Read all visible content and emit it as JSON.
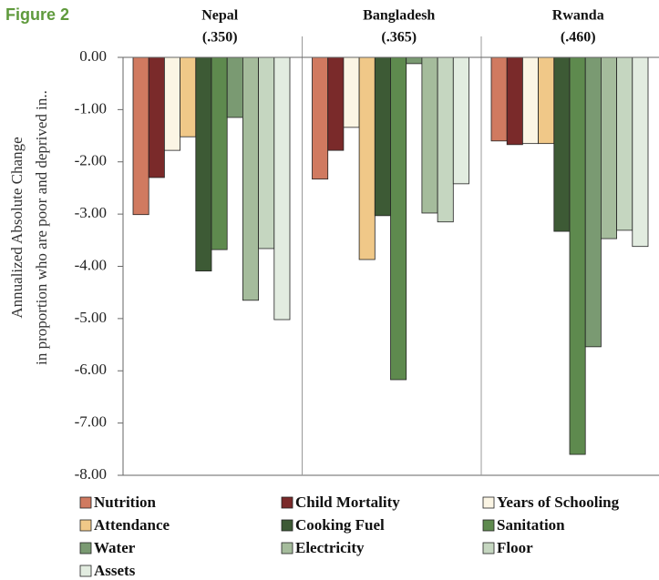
{
  "figure_label": "Figure 2",
  "chart_data": {
    "type": "bar",
    "ylabel": [
      "Annualized Absolute Change",
      "in proportion who are poor and deprived in.."
    ],
    "categories": [
      "Nepal",
      "Bangladesh",
      "Rwanda"
    ],
    "category_subtitles": [
      "(.350)",
      "(.365)",
      "(.460)"
    ],
    "ylim": [
      -8,
      0
    ],
    "yticks": [
      {
        "value": 0,
        "label": "0.00"
      },
      {
        "value": -1,
        "label": "-1.00"
      },
      {
        "value": -2,
        "label": "-2.00"
      },
      {
        "value": -3,
        "label": "-3.00"
      },
      {
        "value": -4,
        "label": "-4.00"
      },
      {
        "value": -5,
        "label": "-5.00"
      },
      {
        "value": -6,
        "label": "-6.00"
      },
      {
        "value": -7,
        "label": "-7.00"
      },
      {
        "value": -8,
        "label": "-8.00"
      }
    ],
    "series": [
      {
        "name": "Nutrition",
        "color": "#d07a60",
        "values": [
          -3.01,
          -2.33,
          -1.6
        ]
      },
      {
        "name": "Child Mortality",
        "color": "#7a2a2a",
        "values": [
          -2.3,
          -1.78,
          -1.67
        ]
      },
      {
        "name": "Years of Schooling",
        "color": "#fbf5e4",
        "values": [
          -1.78,
          -1.34,
          -1.65
        ]
      },
      {
        "name": "Attendance",
        "color": "#f0c888",
        "values": [
          -1.52,
          -3.87,
          -1.65
        ]
      },
      {
        "name": "Cooking Fuel",
        "color": "#3d5a35",
        "values": [
          -4.09,
          -3.03,
          -3.33
        ]
      },
      {
        "name": "Sanitation",
        "color": "#5e8a4e",
        "values": [
          -3.68,
          -6.17,
          -7.6
        ]
      },
      {
        "name": "Water",
        "color": "#7a9a72",
        "values": [
          -1.15,
          -0.12,
          -5.54
        ]
      },
      {
        "name": "Electricity",
        "color": "#a5bc9c",
        "values": [
          -4.65,
          -2.98,
          -3.47
        ]
      },
      {
        "name": "Floor",
        "color": "#c5d6c0",
        "values": [
          -3.66,
          -3.15,
          -3.31
        ]
      },
      {
        "name": "Assets",
        "color": "#e2ece0",
        "values": [
          -5.02,
          -2.42,
          -3.62
        ]
      }
    ]
  }
}
